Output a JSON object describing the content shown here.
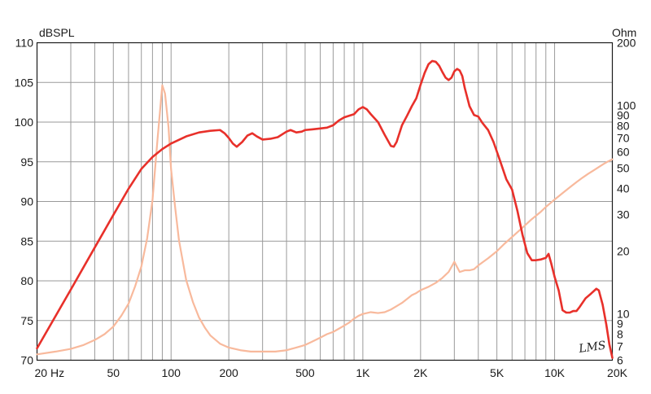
{
  "chart_data": {
    "type": "line",
    "title": "",
    "xlabel": "",
    "x_scale": "log",
    "xlim": [
      20,
      20000
    ],
    "x_ticks": [
      {
        "value": 20,
        "label": "20  Hz"
      },
      {
        "value": 50,
        "label": "50"
      },
      {
        "value": 100,
        "label": "100"
      },
      {
        "value": 200,
        "label": "200"
      },
      {
        "value": 500,
        "label": "500"
      },
      {
        "value": 1000,
        "label": "1K"
      },
      {
        "value": 2000,
        "label": "2K"
      },
      {
        "value": 5000,
        "label": "5K"
      },
      {
        "value": 10000,
        "label": "10K"
      },
      {
        "value": 20000,
        "label": "20K"
      }
    ],
    "y_left": {
      "label": "dBSPL",
      "lim": [
        70,
        110
      ],
      "ticks": [
        70,
        75,
        80,
        85,
        90,
        95,
        100,
        105,
        110
      ]
    },
    "y_right": {
      "label": "Ohm",
      "scale": "log",
      "lim": [
        6,
        200
      ],
      "ticks": [
        6,
        7,
        8,
        9,
        10,
        20,
        30,
        40,
        50,
        60,
        70,
        80,
        90,
        100,
        200
      ]
    },
    "grid": true,
    "brand_text": "LMS",
    "series": [
      {
        "role": "spl",
        "axis": "left",
        "color": "#e8302a",
        "points": [
          [
            20,
            71.5
          ],
          [
            30,
            78.9
          ],
          [
            40,
            84.2
          ],
          [
            50,
            88.3
          ],
          [
            60,
            91.6
          ],
          [
            70,
            94.1
          ],
          [
            80,
            95.6
          ],
          [
            90,
            96.6
          ],
          [
            100,
            97.3
          ],
          [
            120,
            98.2
          ],
          [
            140,
            98.7
          ],
          [
            160,
            98.9
          ],
          [
            180,
            99.0
          ],
          [
            190,
            98.6
          ],
          [
            200,
            98.0
          ],
          [
            210,
            97.3
          ],
          [
            220,
            96.9
          ],
          [
            235,
            97.5
          ],
          [
            250,
            98.3
          ],
          [
            265,
            98.6
          ],
          [
            280,
            98.2
          ],
          [
            300,
            97.8
          ],
          [
            330,
            97.9
          ],
          [
            360,
            98.1
          ],
          [
            400,
            98.8
          ],
          [
            420,
            99.0
          ],
          [
            450,
            98.7
          ],
          [
            480,
            98.8
          ],
          [
            500,
            99.0
          ],
          [
            550,
            99.1
          ],
          [
            600,
            99.2
          ],
          [
            650,
            99.3
          ],
          [
            700,
            99.6
          ],
          [
            750,
            100.2
          ],
          [
            800,
            100.6
          ],
          [
            900,
            101.0
          ],
          [
            950,
            101.6
          ],
          [
            1000,
            101.9
          ],
          [
            1050,
            101.6
          ],
          [
            1100,
            101.0
          ],
          [
            1200,
            100.0
          ],
          [
            1300,
            98.4
          ],
          [
            1400,
            97.0
          ],
          [
            1450,
            96.9
          ],
          [
            1500,
            97.5
          ],
          [
            1600,
            99.6
          ],
          [
            1700,
            100.8
          ],
          [
            1800,
            102.0
          ],
          [
            1900,
            103.0
          ],
          [
            2000,
            104.7
          ],
          [
            2100,
            106.2
          ],
          [
            2200,
            107.3
          ],
          [
            2300,
            107.7
          ],
          [
            2400,
            107.6
          ],
          [
            2500,
            107.1
          ],
          [
            2600,
            106.3
          ],
          [
            2700,
            105.6
          ],
          [
            2800,
            105.3
          ],
          [
            2900,
            105.6
          ],
          [
            3000,
            106.4
          ],
          [
            3100,
            106.7
          ],
          [
            3200,
            106.5
          ],
          [
            3300,
            105.8
          ],
          [
            3400,
            104.3
          ],
          [
            3600,
            102.0
          ],
          [
            3800,
            100.9
          ],
          [
            4000,
            100.7
          ],
          [
            4200,
            99.9
          ],
          [
            4500,
            99.0
          ],
          [
            4800,
            97.5
          ],
          [
            5200,
            95.1
          ],
          [
            5600,
            92.8
          ],
          [
            6000,
            91.5
          ],
          [
            6400,
            88.8
          ],
          [
            6800,
            85.8
          ],
          [
            7200,
            83.5
          ],
          [
            7600,
            82.6
          ],
          [
            8000,
            82.6
          ],
          [
            8500,
            82.7
          ],
          [
            9000,
            82.9
          ],
          [
            9300,
            83.4
          ],
          [
            9600,
            82.2
          ],
          [
            10000,
            80.5
          ],
          [
            10500,
            78.8
          ],
          [
            11000,
            76.3
          ],
          [
            11500,
            76.0
          ],
          [
            12000,
            76.0
          ],
          [
            12500,
            76.2
          ],
          [
            13000,
            76.2
          ],
          [
            13500,
            76.7
          ],
          [
            14500,
            77.8
          ],
          [
            15500,
            78.4
          ],
          [
            16500,
            79.0
          ],
          [
            17000,
            78.8
          ],
          [
            17800,
            77.0
          ],
          [
            18600,
            74.5
          ],
          [
            19300,
            72.0
          ],
          [
            20000,
            70.3
          ]
        ]
      },
      {
        "role": "impedance",
        "axis": "right",
        "color": "#f8b99c",
        "points": [
          [
            20,
            6.4
          ],
          [
            25,
            6.6
          ],
          [
            30,
            6.8
          ],
          [
            35,
            7.1
          ],
          [
            40,
            7.5
          ],
          [
            45,
            8.0
          ],
          [
            50,
            8.7
          ],
          [
            55,
            9.8
          ],
          [
            60,
            11.2
          ],
          [
            65,
            13.6
          ],
          [
            70,
            16.9
          ],
          [
            75,
            23.0
          ],
          [
            80,
            35.1
          ],
          [
            85,
            69.0
          ],
          [
            90,
            125
          ],
          [
            93,
            114
          ],
          [
            97,
            78.5
          ],
          [
            100,
            49.5
          ],
          [
            105,
            32.5
          ],
          [
            110,
            22.5
          ],
          [
            120,
            14.5
          ],
          [
            130,
            11.4
          ],
          [
            140,
            9.6
          ],
          [
            150,
            8.6
          ],
          [
            160,
            7.9
          ],
          [
            180,
            7.2
          ],
          [
            200,
            6.9
          ],
          [
            230,
            6.7
          ],
          [
            260,
            6.6
          ],
          [
            300,
            6.6
          ],
          [
            350,
            6.6
          ],
          [
            400,
            6.7
          ],
          [
            450,
            6.9
          ],
          [
            500,
            7.1
          ],
          [
            550,
            7.4
          ],
          [
            600,
            7.7
          ],
          [
            650,
            8.0
          ],
          [
            700,
            8.2
          ],
          [
            750,
            8.5
          ],
          [
            800,
            8.8
          ],
          [
            850,
            9.1
          ],
          [
            900,
            9.5
          ],
          [
            950,
            9.8
          ],
          [
            1000,
            10.0
          ],
          [
            1100,
            10.2
          ],
          [
            1200,
            10.1
          ],
          [
            1300,
            10.2
          ],
          [
            1400,
            10.5
          ],
          [
            1500,
            10.9
          ],
          [
            1600,
            11.3
          ],
          [
            1700,
            11.8
          ],
          [
            1800,
            12.3
          ],
          [
            1900,
            12.6
          ],
          [
            2000,
            13.0
          ],
          [
            2200,
            13.5
          ],
          [
            2400,
            14.1
          ],
          [
            2600,
            14.9
          ],
          [
            2800,
            15.9
          ],
          [
            3000,
            17.8
          ],
          [
            3100,
            16.8
          ],
          [
            3200,
            15.9
          ],
          [
            3400,
            16.2
          ],
          [
            3600,
            16.2
          ],
          [
            3800,
            16.4
          ],
          [
            4000,
            17.1
          ],
          [
            4500,
            18.5
          ],
          [
            5000,
            20.0
          ],
          [
            5500,
            21.8
          ],
          [
            6000,
            23.4
          ],
          [
            6500,
            25.0
          ],
          [
            7000,
            26.6
          ],
          [
            7500,
            28.2
          ],
          [
            8000,
            29.6
          ],
          [
            8500,
            31.0
          ],
          [
            9000,
            32.6
          ],
          [
            9500,
            34.0
          ],
          [
            10000,
            35.4
          ],
          [
            11000,
            38.0
          ],
          [
            12000,
            40.5
          ],
          [
            13000,
            42.9
          ],
          [
            14000,
            45.1
          ],
          [
            15000,
            47.1
          ],
          [
            16000,
            48.9
          ],
          [
            17000,
            50.7
          ],
          [
            18000,
            52.4
          ],
          [
            19000,
            53.9
          ],
          [
            20000,
            55.2
          ]
        ]
      }
    ]
  }
}
